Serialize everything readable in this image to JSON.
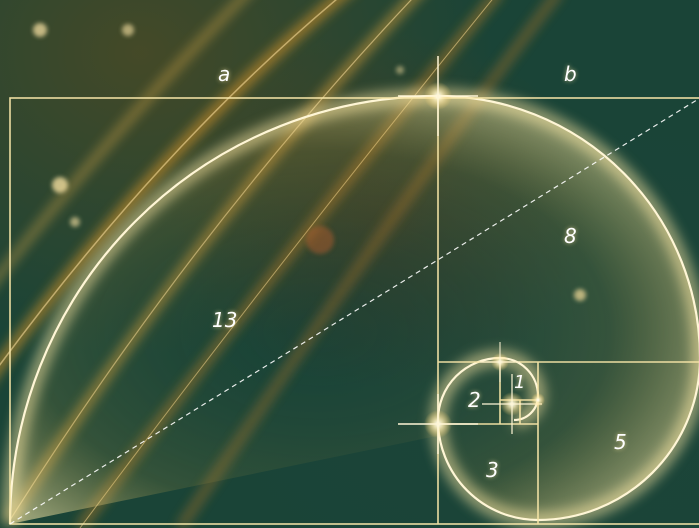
{
  "labels": {
    "a": "a",
    "b": "b",
    "n13": "13",
    "n8": "8",
    "n5": "5",
    "n3": "3",
    "n2": "2",
    "n1": "1"
  },
  "colors": {
    "background": "#1a4437",
    "spiral_glow": "#f4e3a0",
    "lines": "#f7e6a8",
    "streaks": "#d89a2c"
  }
}
